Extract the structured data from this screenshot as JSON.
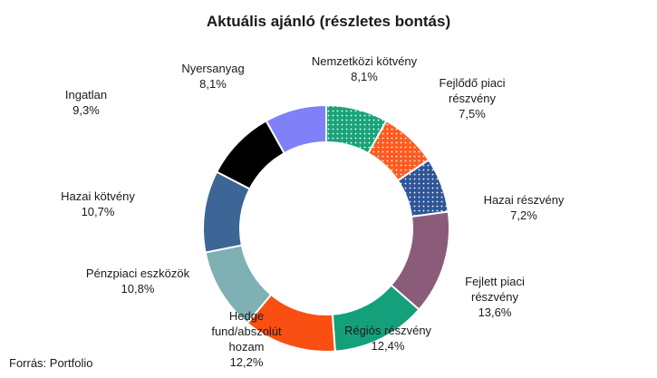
{
  "chart_data": {
    "type": "pie",
    "variant": "donut",
    "title": "Aktuális ajánló (részletes bontás)",
    "source": "Forrás: Portfolio",
    "slices": [
      {
        "label": [
          "Nemzetközi kötvény"
        ],
        "value": 8.1,
        "value_text": "8,1%",
        "color": "#1aa37a",
        "pattern": "dots"
      },
      {
        "label": [
          "Fejlődő piaci",
          "részvény"
        ],
        "value": 7.5,
        "value_text": "7,5%",
        "color": "#ff5a1f",
        "pattern": "dots"
      },
      {
        "label": [
          "Hazai részvény"
        ],
        "value": 7.2,
        "value_text": "7,2%",
        "color": "#2f5597",
        "pattern": "dots"
      },
      {
        "label": [
          "Fejlett piaci",
          "részvény"
        ],
        "value": 13.6,
        "value_text": "13,6%",
        "color": "#8a5c7a",
        "pattern": "solid"
      },
      {
        "label": [
          "Régiós részvény"
        ],
        "value": 12.4,
        "value_text": "12,4%",
        "color": "#13a07a",
        "pattern": "solid"
      },
      {
        "label": [
          "Hedge",
          "fund/abszolút",
          "hozam"
        ],
        "value": 12.2,
        "value_text": "12,2%",
        "color": "#fa4f12",
        "pattern": "solid"
      },
      {
        "label": [
          "Pénzpiaci eszközök"
        ],
        "value": 10.8,
        "value_text": "10,8%",
        "color": "#7fb0b4",
        "pattern": "solid"
      },
      {
        "label": [
          "Hazai kötvény"
        ],
        "value": 10.7,
        "value_text": "10,7%",
        "color": "#3d6595",
        "pattern": "solid"
      },
      {
        "label": [
          "Ingatlan"
        ],
        "value": 9.3,
        "value_text": "9,3%",
        "color": "#000000",
        "pattern": "solid"
      },
      {
        "label": [
          "Nyersanyag"
        ],
        "value": 8.1,
        "value_text": "8,1%",
        "color": "#8080f8",
        "pattern": "solid"
      }
    ]
  }
}
